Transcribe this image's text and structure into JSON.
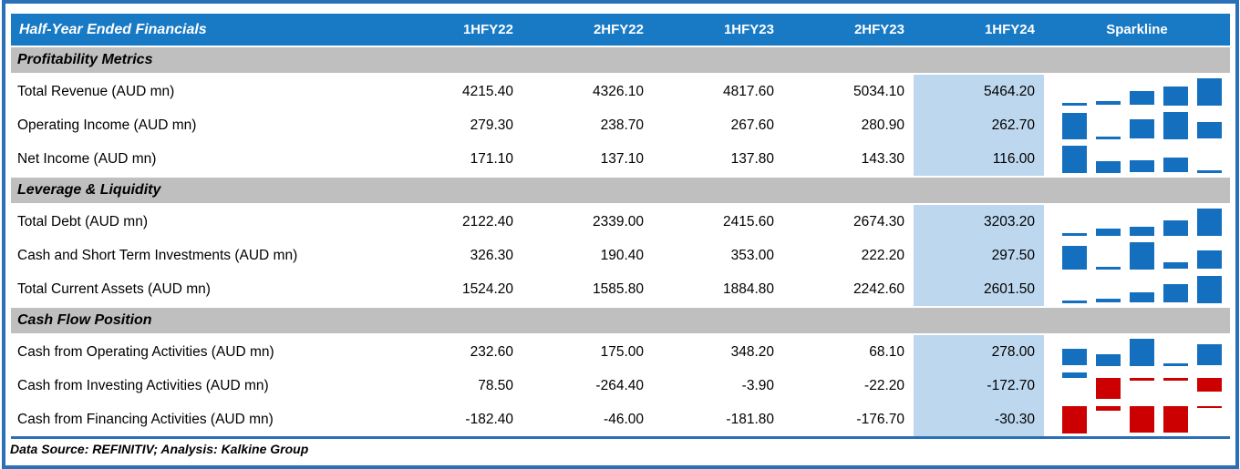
{
  "header": {
    "title": "Half-Year Ended Financials",
    "columns": [
      "1HFY22",
      "2HFY22",
      "1HFY23",
      "2HFY23",
      "1HFY24"
    ],
    "sparkline_label": "Sparkline"
  },
  "footer": {
    "text": "Data Source: REFINITIV; Analysis: Kalkine Group"
  },
  "colors": {
    "header_bg": "#1879C5",
    "frame_blue": "#2B6FB7",
    "section_bg": "#BFBFBF",
    "highlight_bg": "#BDD7EE",
    "sparkline_positive": "#146FBE",
    "sparkline_negative": "#CC0000"
  },
  "chart_data": {
    "type": "table",
    "title": "Half-Year Ended Financials",
    "columns": [
      "1HFY22",
      "2HFY22",
      "1HFY23",
      "2HFY23",
      "1HFY24"
    ],
    "highlight_column": "1HFY24",
    "value_format": "two_decimals",
    "sparkline_type": "bar",
    "sparkline_note": "column sparkline per row; positive bars blue, negative bars red",
    "sections": [
      {
        "label": "Profitability Metrics",
        "rows": [
          {
            "label": "Total Revenue (AUD mn)",
            "values": [
              4215.4,
              4326.1,
              4817.6,
              5034.1,
              5464.2
            ]
          },
          {
            "label": "Operating Income (AUD mn)",
            "values": [
              279.3,
              238.7,
              267.6,
              280.9,
              262.7
            ]
          },
          {
            "label": "Net Income (AUD mn)",
            "values": [
              171.1,
              137.1,
              137.8,
              143.3,
              116.0
            ]
          }
        ]
      },
      {
        "label": "Leverage & Liquidity",
        "rows": [
          {
            "label": "Total Debt (AUD mn)",
            "values": [
              2122.4,
              2339.0,
              2415.6,
              2674.3,
              3203.2
            ]
          },
          {
            "label": "Cash and Short Term Investments (AUD mn)",
            "values": [
              326.3,
              190.4,
              353.0,
              222.2,
              297.5
            ]
          },
          {
            "label": "Total Current Assets (AUD mn)",
            "values": [
              1524.2,
              1585.8,
              1884.8,
              2242.6,
              2601.5
            ]
          }
        ]
      },
      {
        "label": "Cash Flow Position",
        "rows": [
          {
            "label": "Cash from Operating Activities (AUD mn)",
            "values": [
              232.6,
              175.0,
              348.2,
              68.1,
              278.0
            ]
          },
          {
            "label": "Cash from Investing Activities (AUD mn)",
            "values": [
              78.5,
              -264.4,
              -3.9,
              -22.2,
              -172.7
            ]
          },
          {
            "label": "Cash from Financing Activities (AUD mn)",
            "values": [
              -182.4,
              -46.0,
              -181.8,
              -176.7,
              -30.3
            ]
          }
        ]
      }
    ]
  }
}
